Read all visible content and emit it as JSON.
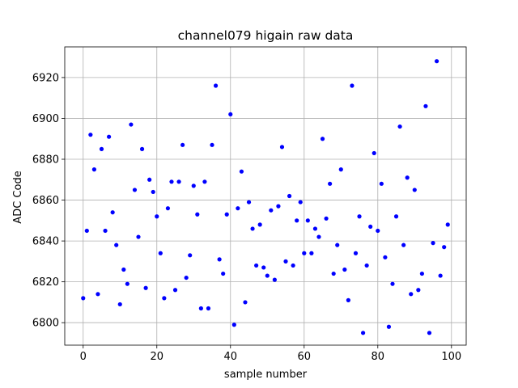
{
  "chart_data": {
    "type": "scatter",
    "title": "channel079 higain raw data",
    "xlabel": "sample number",
    "ylabel": "ADC Code",
    "xlim": [
      -5,
      104
    ],
    "ylim": [
      6789,
      6935
    ],
    "xticks": [
      0,
      20,
      40,
      60,
      80,
      100
    ],
    "yticks": [
      6800,
      6820,
      6840,
      6860,
      6880,
      6900,
      6920
    ],
    "grid": true,
    "marker_color": "#0000ff",
    "series": [
      {
        "x": [
          0,
          1,
          2,
          3,
          4,
          5,
          6,
          7,
          8,
          9,
          10,
          11,
          12,
          13,
          14,
          15,
          16,
          17,
          18,
          19,
          20,
          21,
          22,
          23,
          24,
          25,
          26,
          27,
          28,
          29,
          30,
          31,
          32,
          33,
          34,
          35,
          36,
          37,
          38,
          39,
          40,
          41,
          42,
          43,
          44,
          45,
          46,
          47,
          48,
          49,
          50,
          51,
          52,
          53,
          54,
          55,
          56,
          57,
          58,
          59,
          60,
          61,
          62,
          63,
          64,
          65,
          66,
          67,
          68,
          69,
          70,
          71,
          72,
          73,
          74,
          75,
          76,
          77,
          78,
          79,
          80,
          81,
          82,
          83,
          84,
          85,
          86,
          87,
          88,
          89,
          90,
          91,
          92,
          93,
          94,
          95,
          96,
          97,
          98,
          99
        ],
        "y": [
          6812,
          6845,
          6892,
          6875,
          6814,
          6885,
          6845,
          6891,
          6854,
          6838,
          6809,
          6826,
          6819,
          6897,
          6865,
          6842,
          6885,
          6817,
          6870,
          6864,
          6852,
          6834,
          6812,
          6856,
          6869,
          6816,
          6869,
          6887,
          6822,
          6833,
          6867,
          6853,
          6807,
          6869,
          6807,
          6887,
          6916,
          6831,
          6824,
          6853,
          6902,
          6799,
          6856,
          6874,
          6810,
          6859,
          6846,
          6828,
          6848,
          6827,
          6823,
          6855,
          6821,
          6857,
          6886,
          6830,
          6862,
          6828,
          6850,
          6859,
          6834,
          6850,
          6834,
          6846,
          6842,
          6890,
          6851,
          6868,
          6824,
          6838,
          6875,
          6826,
          6811,
          6916,
          6834,
          6852,
          6795,
          6828,
          6847,
          6883,
          6845,
          6868,
          6832,
          6798,
          6819,
          6852,
          6896,
          6838,
          6871,
          6814,
          6865,
          6816,
          6824,
          6906,
          6795,
          6839,
          6928,
          6823,
          6837,
          6848
        ]
      }
    ]
  }
}
